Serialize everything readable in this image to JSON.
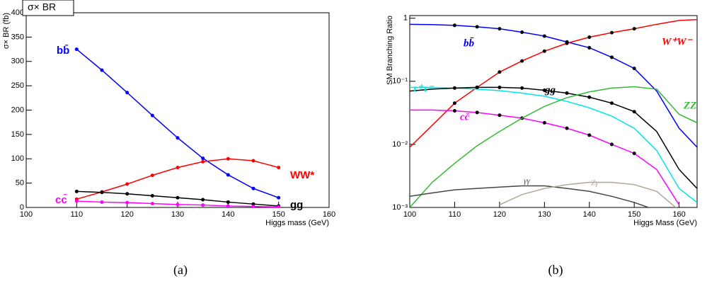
{
  "chart_data": [
    {
      "type": "line",
      "title": "σ× BR",
      "y_label": "σ× BR (fb)",
      "x_label": "Higgs mass (GeV)",
      "caption": "(a)",
      "x": [
        110,
        115,
        120,
        125,
        130,
        135,
        140,
        145,
        150
      ],
      "series": [
        {
          "name": "bb̄",
          "color": "#0000ff",
          "values": [
            325,
            282,
            236,
            189,
            143,
            101,
            67,
            39,
            20
          ],
          "markers": true
        },
        {
          "name": "WW*",
          "color": "#ff0000",
          "values": [
            17,
            32,
            48,
            66,
            82,
            94,
            100,
            96,
            82
          ],
          "markers": true
        },
        {
          "name": "gg",
          "color": "#000000",
          "values": [
            33,
            31,
            28,
            24,
            20,
            16,
            11,
            7,
            3
          ],
          "markers": true
        },
        {
          "name": "cc̄",
          "color": "#ff00ff",
          "values": [
            13,
            11,
            10,
            8,
            6,
            5,
            3,
            2,
            1
          ],
          "markers": true
        }
      ],
      "xlim": [
        100,
        160
      ],
      "xticks": [
        100,
        110,
        120,
        130,
        140,
        150,
        160
      ],
      "ylim": [
        0,
        400
      ],
      "yticks": [
        0,
        50,
        100,
        150,
        200,
        250,
        300,
        350,
        400
      ],
      "log_y": false
    },
    {
      "type": "line",
      "y_label": "SM Branching Ratio",
      "x_label": "Higgs Mass (GeV)",
      "caption": "(b)",
      "x": [
        100,
        105,
        110,
        115,
        120,
        125,
        130,
        135,
        140,
        145,
        150,
        155,
        160,
        164
      ],
      "series": [
        {
          "name": "bb̄",
          "color": "#0000ff",
          "values": [
            0.8,
            0.79,
            0.77,
            0.73,
            0.68,
            0.6,
            0.52,
            0.42,
            0.34,
            0.24,
            0.16,
            0.07,
            0.018,
            0.009
          ],
          "points": {
            "x": [
              110,
              115,
              120,
              125,
              130,
              135,
              140,
              145,
              150
            ],
            "values": [
              0.77,
              0.73,
              0.68,
              0.6,
              0.52,
              0.42,
              0.34,
              0.24,
              0.16
            ]
          }
        },
        {
          "name": "W⁺W⁻",
          "color": "#ff0000",
          "values": [
            0.009,
            0.02,
            0.045,
            0.08,
            0.14,
            0.21,
            0.3,
            0.4,
            0.5,
            0.59,
            0.68,
            0.8,
            0.92,
            0.95
          ],
          "points": {
            "x": [
              110,
              115,
              120,
              125,
              130,
              135,
              140,
              145,
              150
            ],
            "values": [
              0.045,
              0.08,
              0.14,
              0.21,
              0.3,
              0.4,
              0.5,
              0.59,
              0.68
            ]
          }
        },
        {
          "name": "τ⁺τ⁻",
          "color": "#00e5e5",
          "values": [
            0.08,
            0.079,
            0.078,
            0.075,
            0.071,
            0.065,
            0.058,
            0.048,
            0.038,
            0.028,
            0.018,
            0.008,
            0.002,
            0.0012
          ]
        },
        {
          "name": "gg",
          "color": "#000000",
          "values": [
            0.07,
            0.075,
            0.078,
            0.08,
            0.08,
            0.078,
            0.072,
            0.065,
            0.056,
            0.045,
            0.033,
            0.016,
            0.004,
            0.002
          ],
          "points": {
            "x": [
              110,
              115,
              120,
              125,
              130,
              135,
              140,
              145,
              150
            ],
            "values": [
              0.078,
              0.08,
              0.08,
              0.078,
              0.072,
              0.065,
              0.056,
              0.045,
              0.033
            ]
          }
        },
        {
          "name": "cc̄",
          "color": "#ff00ff",
          "values": [
            0.035,
            0.035,
            0.034,
            0.032,
            0.029,
            0.026,
            0.022,
            0.018,
            0.014,
            0.01,
            0.0072,
            0.004,
            0.0011,
            null
          ],
          "points": {
            "x": [
              110,
              115,
              120,
              125,
              130,
              135,
              140,
              145,
              150
            ],
            "values": [
              0.034,
              0.032,
              0.029,
              0.026,
              0.022,
              0.018,
              0.014,
              0.01,
              0.0072
            ]
          }
        },
        {
          "name": "ZZ",
          "color": "#33bb33",
          "values": [
            0.001,
            0.0025,
            0.005,
            0.0095,
            0.016,
            0.026,
            0.04,
            0.055,
            0.068,
            0.078,
            0.082,
            0.075,
            0.03,
            0.022
          ]
        },
        {
          "name": "γγ",
          "color": "#444444",
          "values": [
            0.0015,
            0.0017,
            0.0019,
            0.002,
            0.0021,
            0.0022,
            0.0022,
            0.002,
            0.0018,
            0.0015,
            0.0012,
            0.0009,
            null,
            null
          ]
        },
        {
          "name": "Zγ",
          "color": "#b0a898",
          "values": [
            null,
            null,
            null,
            null,
            0.0011,
            0.0016,
            0.002,
            0.0023,
            0.0025,
            0.0025,
            0.0023,
            0.0018,
            0.0009,
            null
          ]
        }
      ],
      "xlim": [
        100,
        164
      ],
      "xticks": [
        100,
        110,
        120,
        130,
        140,
        150,
        160
      ],
      "ylim": [
        0.001,
        1.1
      ],
      "log_y": true,
      "yticks": [
        {
          "value": 0.001,
          "label": "10⁻³"
        },
        {
          "value": 0.01,
          "label": "10⁻²"
        },
        {
          "value": 0.1,
          "label": "10⁻¹"
        },
        1
      ]
    }
  ]
}
